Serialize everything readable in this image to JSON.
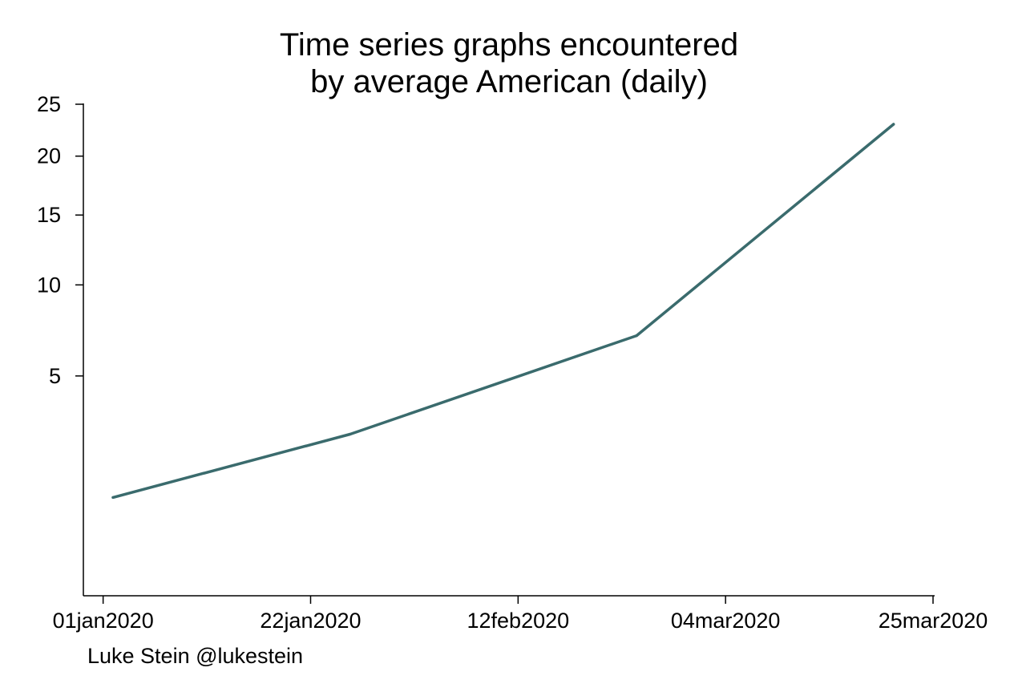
{
  "chart_data": {
    "type": "line",
    "title": [
      "Time series graphs encountered",
      "by average American (daily)"
    ],
    "xlabel": "",
    "ylabel": "",
    "x_scale": "date",
    "y_scale": "sqrt",
    "xlim": [
      "2019-12-30",
      "2020-03-25"
    ],
    "ylim": [
      0,
      25
    ],
    "x_ticks": [
      "01jan2020",
      "22jan2020",
      "12feb2020",
      "04mar2020",
      "25mar2020"
    ],
    "y_ticks": [
      5,
      10,
      15,
      20,
      25
    ],
    "grid": false,
    "series": [
      {
        "color": "#3a6b6d",
        "x": [
          "2020-01-02",
          "2020-01-26",
          "2020-02-24",
          "2020-03-21"
        ],
        "y": [
          1,
          2.7,
          7,
          23
        ]
      }
    ],
    "annotations": [
      "Luke Stein @lukestein"
    ]
  }
}
